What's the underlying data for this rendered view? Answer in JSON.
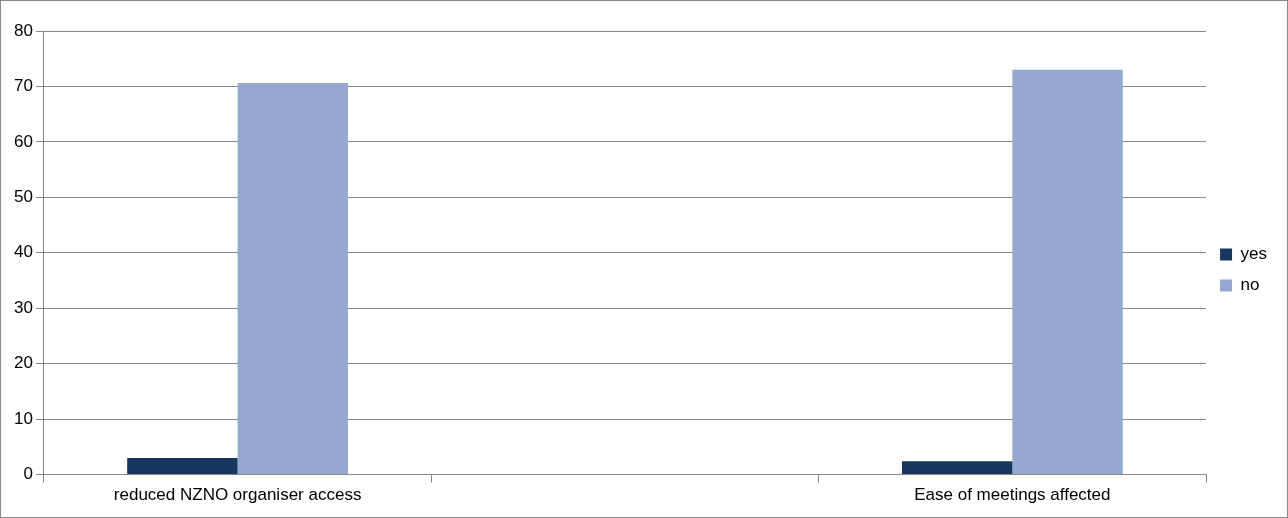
{
  "chart_data": {
    "type": "bar",
    "categories": [
      "reduced NZNO organiser access",
      null,
      "Ease of meetings affected"
    ],
    "series": [
      {
        "name": "yes",
        "color": "#17375e",
        "values": [
          3.0,
          null,
          2.4
        ]
      },
      {
        "name": "no",
        "color": "#95a9d0",
        "values": [
          70.6,
          null,
          73.0
        ]
      }
    ],
    "ylim": [
      0,
      80
    ],
    "yticks": [
      0,
      10,
      20,
      30,
      40,
      50,
      60,
      70,
      80
    ],
    "grid": "y",
    "legend": "right"
  }
}
